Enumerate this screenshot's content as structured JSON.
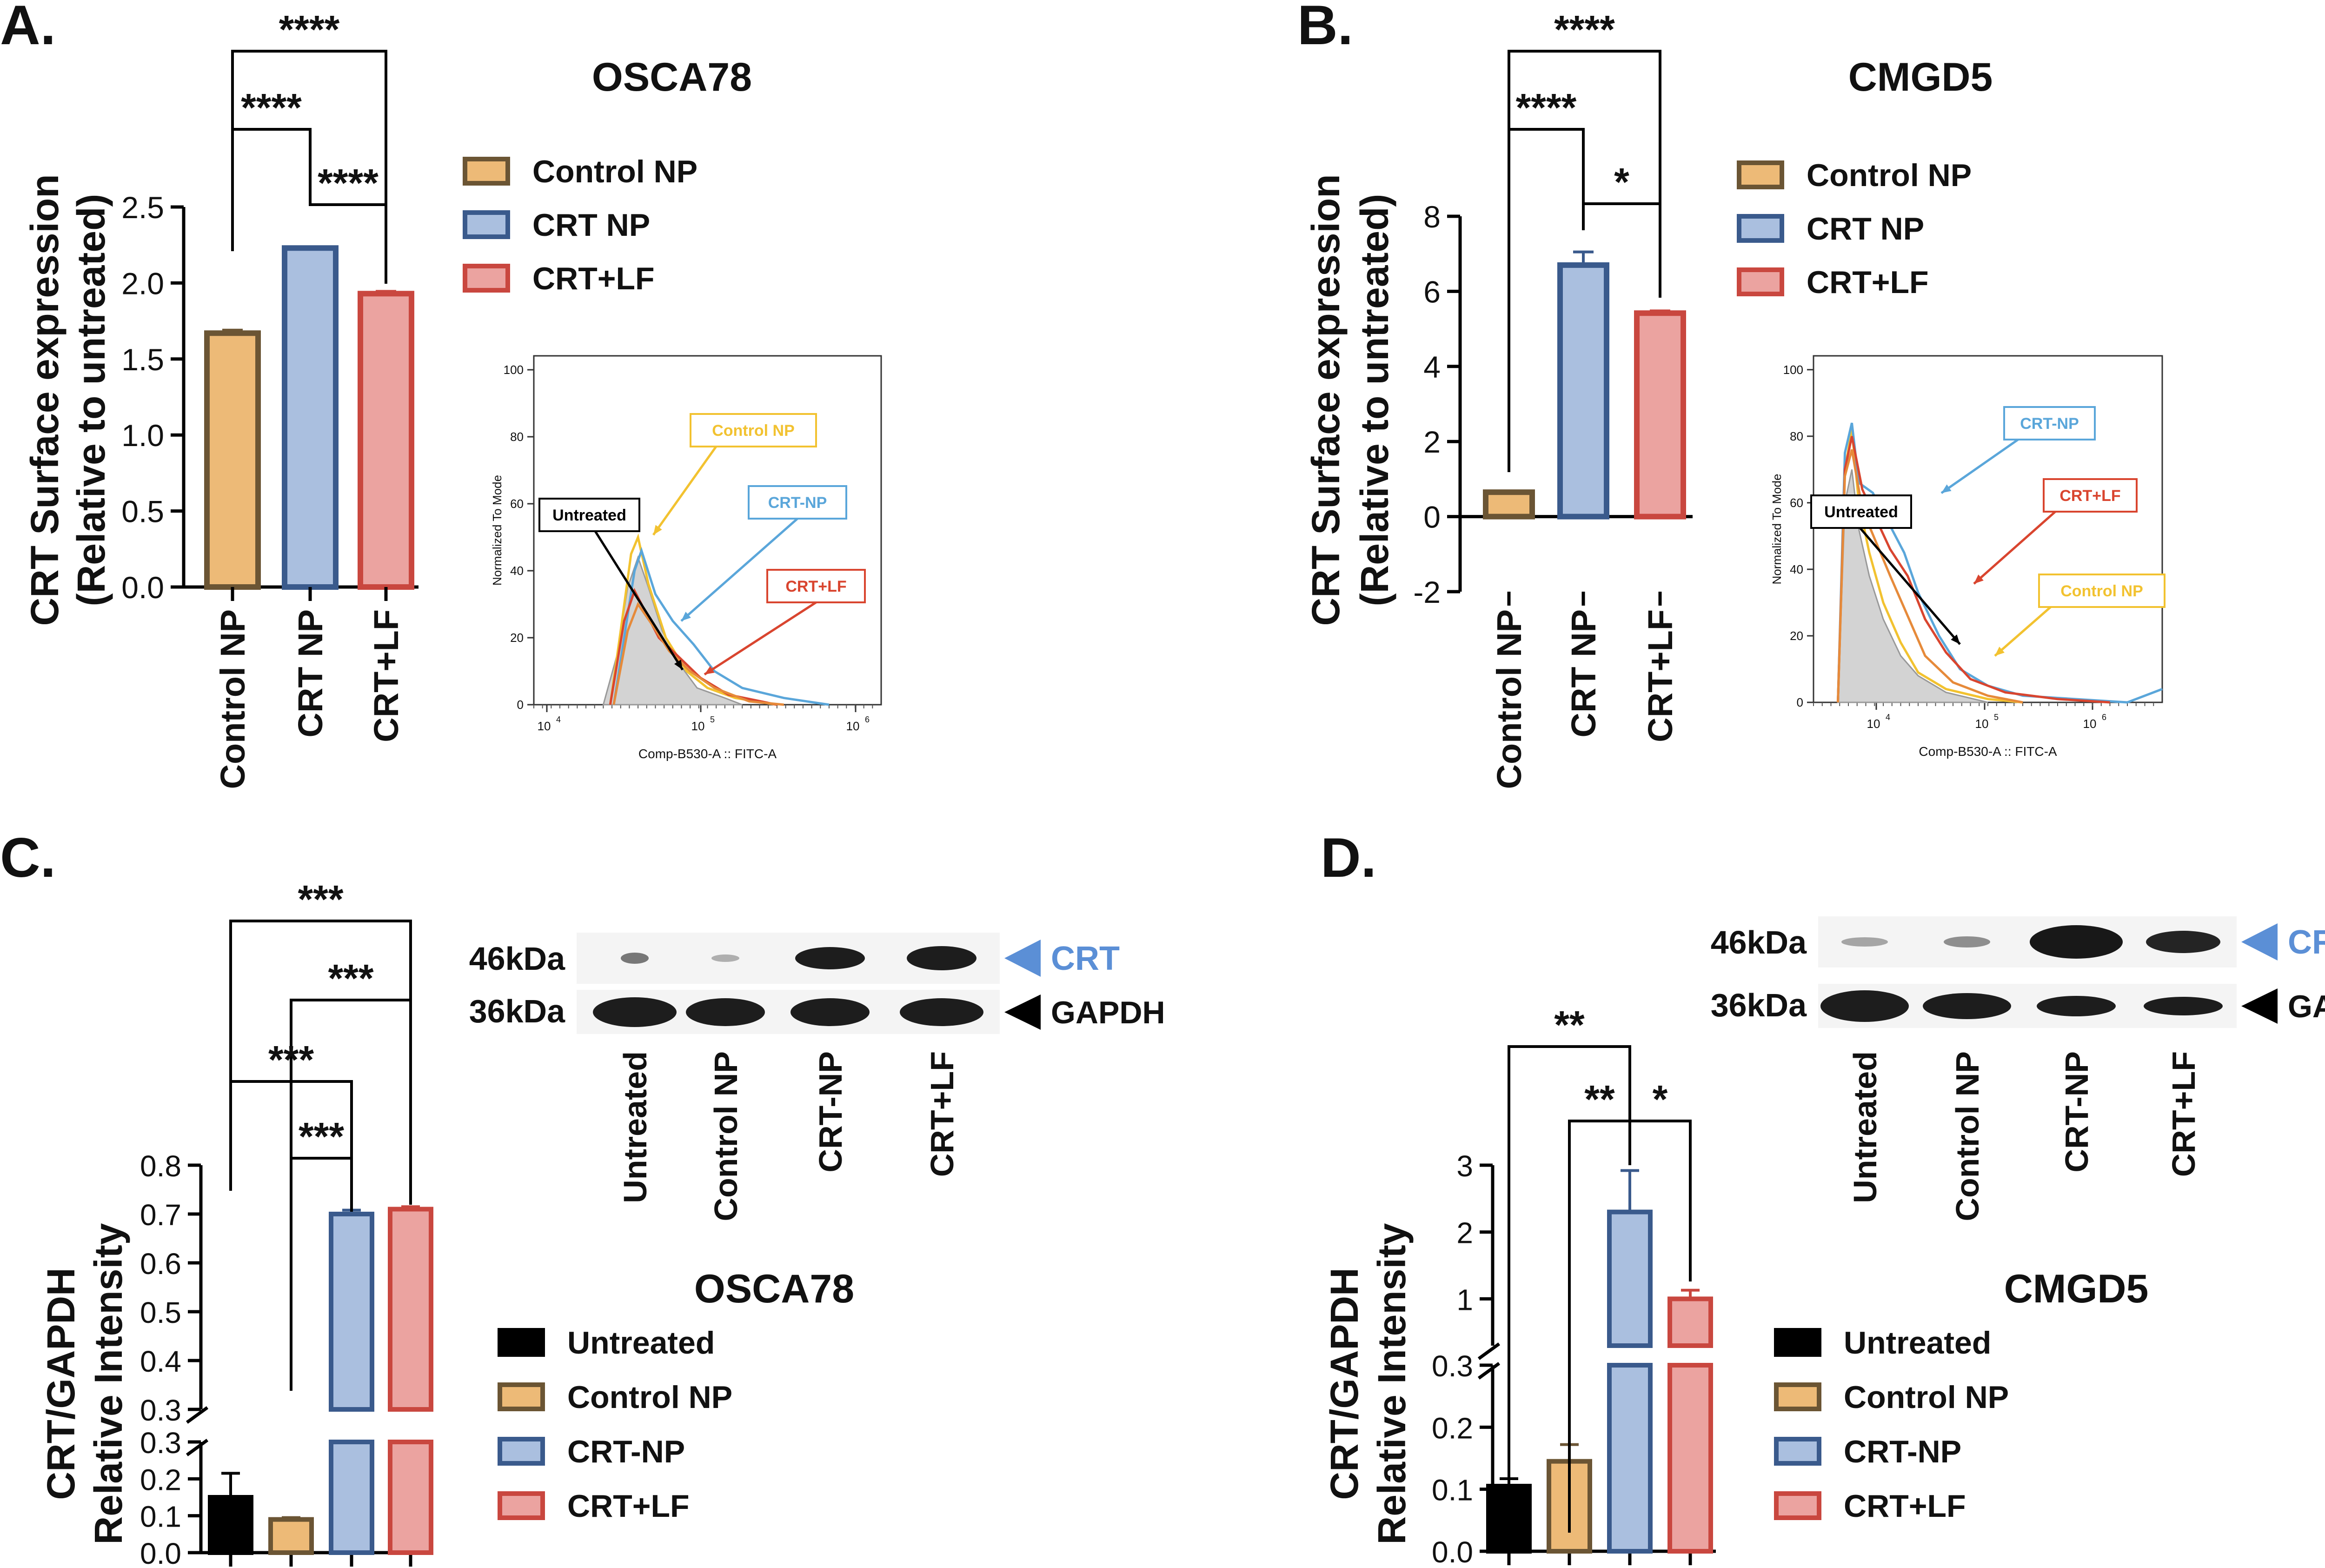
{
  "figure": {
    "panels": [
      {
        "letter": "A.",
        "title": "OSCA78"
      },
      {
        "letter": "B.",
        "title": "CMGD5"
      },
      {
        "letter": "C.",
        "title": "OSCA78"
      },
      {
        "letter": "D.",
        "title": "CMGD5"
      }
    ]
  },
  "colors": {
    "control_fill": "#EDBA77",
    "control_edge": "#6B5534",
    "crt_fill": "#AABFDF",
    "crt_edge": "#3A5A8C",
    "lf_fill": "#EBA3A0",
    "lf_edge": "#C9473F",
    "untreated_fill": "#000000",
    "hist_gray": "#D3D3D3",
    "hist_yellow": "#F2C230",
    "hist_blue": "#5AA6DA",
    "hist_red": "#D9452F",
    "hist_orange": "#E68A3A",
    "crt_label": "#5B8FD6"
  },
  "chart_data": [
    {
      "panel": "A",
      "type": "bar",
      "title": "OSCA78",
      "ylabel": "CRT Surface expression",
      "ylabel2": "(Relative to untreated)",
      "categories": [
        "Control NP",
        "CRT NP",
        "CRT+LF"
      ],
      "values": [
        1.67,
        2.23,
        1.93
      ],
      "errors": [
        0.02,
        0.005,
        0.015
      ],
      "ylim": [
        0,
        2.5
      ],
      "yticks": [
        "0.0",
        "0.5",
        "1.0",
        "1.5",
        "2.0",
        "2.5"
      ],
      "significance": [
        {
          "pair": [
            "Control NP",
            "CRT+LF"
          ],
          "label": "****"
        },
        {
          "pair": [
            "Control NP",
            "CRT NP"
          ],
          "label": "****"
        },
        {
          "pair": [
            "CRT NP",
            "CRT+LF"
          ],
          "label": "****"
        }
      ],
      "legend": [
        "Control NP",
        "CRT NP",
        "CRT+LF"
      ]
    },
    {
      "panel": "B",
      "type": "bar",
      "title": "CMGD5",
      "ylabel": "CRT Surface expression",
      "ylabel2": "(Relative to untreated)",
      "categories": [
        "Control NP",
        "CRT NP",
        "CRT+LF"
      ],
      "values": [
        0.65,
        6.7,
        5.42
      ],
      "errors": [
        0.03,
        0.35,
        0.06
      ],
      "ylim": [
        -2,
        8
      ],
      "yticks": [
        "-2",
        "0",
        "2",
        "4",
        "6",
        "8"
      ],
      "significance": [
        {
          "pair": [
            "Control NP",
            "CRT+LF"
          ],
          "label": "****"
        },
        {
          "pair": [
            "Control NP",
            "CRT NP"
          ],
          "label": "****"
        },
        {
          "pair": [
            "CRT NP",
            "CRT+LF"
          ],
          "label": "*"
        }
      ],
      "legend": [
        "Control NP",
        "CRT NP",
        "CRT+LF"
      ]
    },
    {
      "panel": "A-inset",
      "type": "line",
      "xlabel": "Comp-B530-A :: FITC-A",
      "ylabel": "Normalized To Mode",
      "yticks": [
        "0",
        "20",
        "40",
        "60",
        "80",
        "100"
      ],
      "ylim": [
        0,
        100
      ],
      "xticks": [
        "10",
        "10",
        "10"
      ],
      "xtick_exps": [
        "4",
        "5",
        "6"
      ],
      "labels": {
        "untreated": "Untreated",
        "control": "Control NP",
        "crt": "CRT-NP",
        "lf": "CRT+LF"
      }
    },
    {
      "panel": "B-inset",
      "type": "line",
      "xlabel": "Comp-B530-A :: FITC-A",
      "ylabel": "Normalized To Mode",
      "yticks": [
        "0",
        "20",
        "40",
        "60",
        "80",
        "100"
      ],
      "ylim": [
        0,
        100
      ],
      "xticks": [
        "10",
        "10",
        "10"
      ],
      "xtick_exps": [
        "4",
        "5",
        "6"
      ],
      "labels": {
        "untreated": "Untreated",
        "control": "Control NP",
        "crt": "CRT-NP",
        "lf": "CRT+LF"
      }
    },
    {
      "panel": "C",
      "type": "bar",
      "title": "OSCA78",
      "ylabel": "CRT/GAPDH",
      "ylabel2": "Relative Intensity",
      "categories": [
        "Untreated",
        "Control NP",
        "CRT-NP",
        "CRT+LF"
      ],
      "values": [
        0.15,
        0.09,
        0.7,
        0.71
      ],
      "errors": [
        0.065,
        0.005,
        0.008,
        0.005
      ],
      "ylim_lower": [
        0,
        0.3
      ],
      "ylim_upper": [
        0.3,
        0.8
      ],
      "yticks_lower": [
        "0.0",
        "0.1",
        "0.2",
        "0.3"
      ],
      "yticks_upper": [
        "0.3",
        "0.4",
        "0.5",
        "0.6",
        "0.7",
        "0.8"
      ],
      "significance": [
        {
          "pair": [
            "Untreated",
            "CRT+LF"
          ],
          "label": "***"
        },
        {
          "pair": [
            "Control NP",
            "CRT+LF"
          ],
          "label": "***"
        },
        {
          "pair": [
            "Untreated",
            "CRT-NP"
          ],
          "label": "***"
        },
        {
          "pair": [
            "Control NP",
            "CRT-NP"
          ],
          "label": "***"
        }
      ],
      "legend": [
        "Untreated",
        "Control NP",
        "CRT-NP",
        "CRT+LF"
      ],
      "blot": {
        "marker_top": "46kDa",
        "marker_bottom": "36kDa",
        "label_top": "CRT",
        "label_bottom": "GAPDH",
        "lanes": [
          "Untreated",
          "Control NP",
          "CRT-NP",
          "CRT+LF"
        ]
      }
    },
    {
      "panel": "D",
      "type": "bar",
      "title": "CMGD5",
      "ylabel": "CRT/GAPDH",
      "ylabel2": "Relative Intensity",
      "categories": [
        "Untreated",
        "Control NP",
        "CRT-NP",
        "CRT+LF"
      ],
      "values": [
        0.105,
        0.145,
        2.3,
        1.0
      ],
      "errors": [
        0.012,
        0.027,
        0.62,
        0.13
      ],
      "ylim_lower": [
        0,
        0.3
      ],
      "ylim_upper": [
        0.3,
        3
      ],
      "yticks_lower": [
        "0.0",
        "0.1",
        "0.2",
        "0.3"
      ],
      "yticks_upper": [
        "1",
        "2",
        "3"
      ],
      "significance": [
        {
          "pair": [
            "Untreated",
            "CRT-NP"
          ],
          "label": "**"
        },
        {
          "pair": [
            "Control NP",
            "CRT-NP"
          ],
          "label": "**"
        },
        {
          "pair": [
            "CRT-NP",
            "CRT+LF"
          ],
          "label": "*"
        }
      ],
      "legend": [
        "Untreated",
        "Control NP",
        "CRT-NP",
        "CRT+LF"
      ],
      "blot": {
        "marker_top": "46kDa",
        "marker_bottom": "36kDa",
        "label_top": "CRT",
        "label_bottom": "GAPDH",
        "lanes": [
          "Untreated",
          "Control NP",
          "CRT-NP",
          "CRT+LF"
        ]
      }
    }
  ]
}
